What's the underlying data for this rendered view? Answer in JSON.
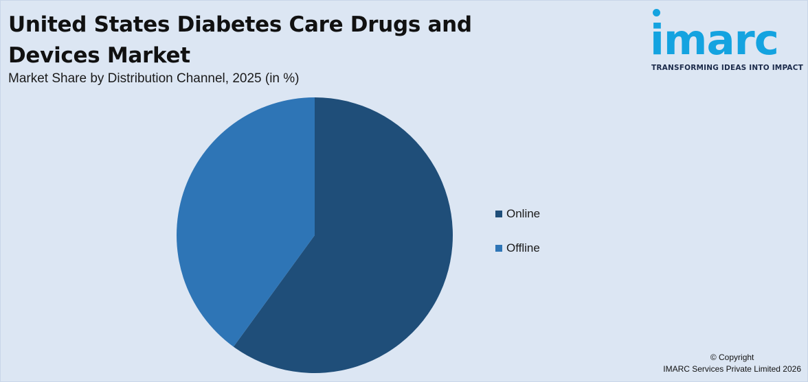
{
  "header": {
    "title": "United States Diabetes Care Drugs and Devices Market",
    "subtitle": "Market Share by Distribution Channel, 2025 (in %)"
  },
  "logo": {
    "word": "imarc",
    "tagline": "TRANSFORMING IDEAS INTO IMPACT",
    "color": "#14a3e0"
  },
  "chart_data": {
    "type": "pie",
    "title": "United States Diabetes Care Drugs and Devices Market",
    "subtitle": "Market Share by Distribution Channel, 2025 (in %)",
    "categories": [
      "Online",
      "Offline"
    ],
    "values": [
      60,
      40
    ],
    "colors": [
      "#1f4e79",
      "#2e75b6"
    ],
    "start_angle": "12 o'clock, clockwise",
    "legend_position": "right",
    "data_labels": false
  },
  "footer": {
    "copyright_line1": "© Copyright",
    "copyright_line2": "IMARC Services Private Limited 2026"
  }
}
